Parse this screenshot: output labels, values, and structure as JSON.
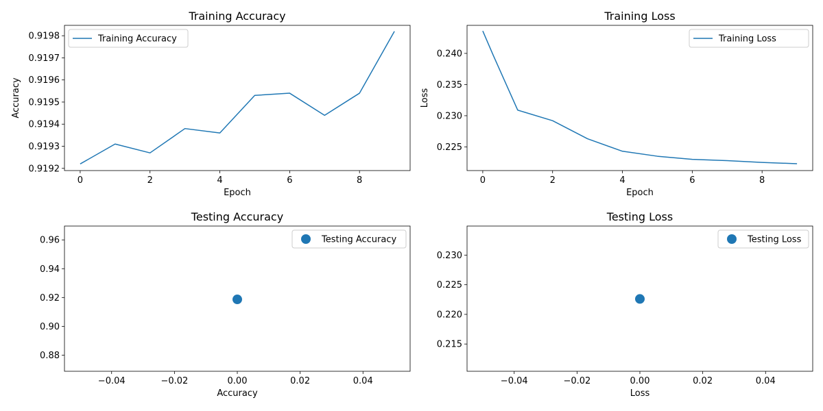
{
  "colors": {
    "series": "#1f77b4",
    "axes": "#000000",
    "legend_border": "#cccccc"
  },
  "chart_data": [
    {
      "type": "line",
      "title": "Training Accuracy",
      "xlabel": "Epoch",
      "ylabel": "Accuracy",
      "legend": "upper left",
      "grid": false,
      "xlim": [
        -0.45,
        9.45
      ],
      "ylim": [
        0.91919,
        0.919847
      ],
      "xticks": [
        0,
        2,
        4,
        6,
        8
      ],
      "xtick_labels": [
        "0",
        "2",
        "4",
        "6",
        "8"
      ],
      "yticks": [
        0.9192,
        0.9193,
        0.9194,
        0.9195,
        0.9196,
        0.9197,
        0.9198
      ],
      "ytick_labels": [
        "0.9192",
        "0.9193",
        "0.9194",
        "0.9195",
        "0.9196",
        "0.9197",
        "0.9198"
      ],
      "series": [
        {
          "name": "Training Accuracy",
          "style": "line",
          "x": [
            0,
            1,
            2,
            3,
            4,
            5,
            6,
            7,
            8,
            9
          ],
          "y": [
            0.91922,
            0.91931,
            0.91927,
            0.91938,
            0.91936,
            0.91953,
            0.91954,
            0.91944,
            0.91954,
            0.91982
          ]
        }
      ]
    },
    {
      "type": "line",
      "title": "Training Loss",
      "xlabel": "Epoch",
      "ylabel": "Loss",
      "legend": "upper right",
      "grid": false,
      "xlim": [
        -0.45,
        9.45
      ],
      "ylim": [
        0.2212,
        0.2445
      ],
      "xticks": [
        0,
        2,
        4,
        6,
        8
      ],
      "xtick_labels": [
        "0",
        "2",
        "4",
        "6",
        "8"
      ],
      "yticks": [
        0.225,
        0.23,
        0.235,
        0.24
      ],
      "ytick_labels": [
        "0.225",
        "0.230",
        "0.235",
        "0.240"
      ],
      "series": [
        {
          "name": "Training Loss",
          "style": "line",
          "x": [
            0,
            0.3,
            1,
            2,
            3,
            4,
            5,
            6,
            7,
            8,
            9
          ],
          "y": [
            0.2436,
            0.2397,
            0.2309,
            0.2292,
            0.2263,
            0.2243,
            0.2235,
            0.223,
            0.2228,
            0.2225,
            0.2223
          ]
        }
      ]
    },
    {
      "type": "scatter",
      "title": "Testing Accuracy",
      "xlabel": "Accuracy",
      "ylabel": "",
      "legend": "upper right",
      "grid": false,
      "xlim": [
        -0.055,
        0.055
      ],
      "ylim": [
        0.8688,
        0.9696
      ],
      "xticks": [
        -0.04,
        -0.02,
        0,
        0.02,
        0.04
      ],
      "xtick_labels": [
        "−0.04",
        "−0.02",
        "0.00",
        "0.02",
        "0.04"
      ],
      "yticks": [
        0.88,
        0.9,
        0.92,
        0.94,
        0.96
      ],
      "ytick_labels": [
        "0.88",
        "0.90",
        "0.92",
        "0.94",
        "0.96"
      ],
      "series": [
        {
          "name": "Testing Accuracy",
          "style": "marker",
          "x": [
            0
          ],
          "y": [
            0.9187
          ]
        }
      ]
    },
    {
      "type": "scatter",
      "title": "Testing Loss",
      "xlabel": "Loss",
      "ylabel": "",
      "legend": "upper right",
      "grid": false,
      "xlim": [
        -0.055,
        0.055
      ],
      "ylim": [
        0.2104,
        0.2349
      ],
      "xticks": [
        -0.04,
        -0.02,
        0,
        0.02,
        0.04
      ],
      "xtick_labels": [
        "−0.04",
        "−0.02",
        "0.00",
        "0.02",
        "0.04"
      ],
      "yticks": [
        0.215,
        0.22,
        0.225,
        0.23
      ],
      "ytick_labels": [
        "0.215",
        "0.220",
        "0.225",
        "0.230"
      ],
      "series": [
        {
          "name": "Testing Loss",
          "style": "marker",
          "x": [
            0
          ],
          "y": [
            0.2226
          ]
        }
      ]
    }
  ]
}
